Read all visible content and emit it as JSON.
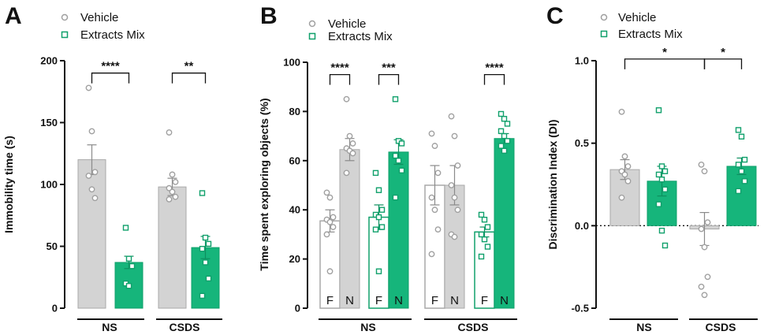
{
  "colors": {
    "vehicle": "#d3d3d3",
    "vehicle_edge": "#a9a9a9",
    "vehicle_point": "#a0a0a0",
    "extracts": "#16b57b",
    "extracts_edge": "#10a06b",
    "axis": "#111111"
  },
  "legend": {
    "vehicle": "Vehicle",
    "extracts": "Extracts Mix"
  },
  "chart_data": [
    {
      "panel": "A",
      "type": "bar",
      "ylabel": "Immobility time (s)",
      "ylim": [
        0,
        200
      ],
      "yticks": [
        0,
        50,
        100,
        150,
        200
      ],
      "yticklabels": [
        "0",
        "50",
        "100",
        "150",
        "200"
      ],
      "groups": [
        "NS",
        "CSDS"
      ],
      "bars": [
        {
          "group": "NS",
          "series": "Vehicle",
          "style": "vehicle",
          "mean": 120,
          "sem": 12,
          "points": [
            178,
            143,
            110,
            107,
            96,
            89
          ]
        },
        {
          "group": "NS",
          "series": "Extracts Mix",
          "style": "extracts",
          "mean": 37,
          "sem": 5,
          "points": [
            65,
            40,
            34,
            20,
            18
          ]
        },
        {
          "group": "CSDS",
          "series": "Vehicle",
          "style": "vehicle",
          "mean": 98,
          "sem": 7,
          "points": [
            142,
            108,
            102,
            97,
            94,
            90,
            88
          ]
        },
        {
          "group": "CSDS",
          "series": "Extracts Mix",
          "style": "extracts",
          "mean": 49,
          "sem": 9,
          "points": [
            93,
            57,
            52,
            48,
            37,
            24,
            10
          ]
        }
      ],
      "significance": [
        {
          "pair": [
            0,
            1
          ],
          "y": 190,
          "label": "****"
        },
        {
          "pair": [
            2,
            3
          ],
          "y": 190,
          "label": "**"
        }
      ]
    },
    {
      "panel": "B",
      "type": "bar",
      "ylabel": "Time spent exploring objects (%)",
      "ylim": [
        0,
        100
      ],
      "yticks": [
        0,
        20,
        40,
        60,
        80,
        100
      ],
      "yticklabels": [
        "0",
        "20",
        "40",
        "60",
        "80",
        "100"
      ],
      "groups": [
        "NS",
        "CSDS"
      ],
      "bars": [
        {
          "group": "NS",
          "series": "Vehicle",
          "object": "F",
          "style": "vehicle-open",
          "mean": 35.5,
          "sem": 4.5,
          "points": [
            47,
            45,
            37,
            36,
            35,
            33,
            30,
            15
          ]
        },
        {
          "group": "NS",
          "series": "Vehicle",
          "object": "N",
          "style": "vehicle",
          "mean": 64.5,
          "sem": 4.5,
          "points": [
            85,
            70,
            67,
            65,
            64,
            63,
            55
          ]
        },
        {
          "group": "NS",
          "series": "Extracts Mix",
          "object": "F",
          "style": "extracts-open",
          "mean": 37,
          "sem": 5,
          "points": [
            55,
            48,
            40,
            38,
            37,
            33,
            32,
            15
          ]
        },
        {
          "group": "NS",
          "series": "Extracts Mix",
          "object": "N",
          "style": "extracts",
          "mean": 63.5,
          "sem": 5,
          "points": [
            85,
            68,
            67,
            62,
            60,
            56,
            45
          ]
        },
        {
          "group": "CSDS",
          "series": "Vehicle",
          "object": "F",
          "style": "vehicle-open",
          "mean": 50,
          "sem": 8,
          "points": [
            71,
            66,
            55,
            45,
            40,
            32,
            22
          ]
        },
        {
          "group": "CSDS",
          "series": "Vehicle",
          "object": "N",
          "style": "vehicle",
          "mean": 50,
          "sem": 8,
          "points": [
            78,
            70,
            58,
            50,
            45,
            40,
            30,
            29
          ]
        },
        {
          "group": "CSDS",
          "series": "Extracts Mix",
          "object": "F",
          "style": "extracts-open",
          "mean": 31,
          "sem": 2,
          "points": [
            38,
            36,
            33,
            30,
            28,
            25,
            21
          ]
        },
        {
          "group": "CSDS",
          "series": "Extracts Mix",
          "object": "N",
          "style": "extracts",
          "mean": 69,
          "sem": 2,
          "points": [
            79,
            77,
            75,
            72,
            70,
            68,
            66,
            64
          ]
        }
      ],
      "significance": [
        {
          "pair": [
            0,
            1
          ],
          "y": 95,
          "label": "****"
        },
        {
          "pair": [
            2,
            3
          ],
          "y": 95,
          "label": "***"
        },
        {
          "pair": [
            6,
            7
          ],
          "y": 95,
          "label": "****"
        }
      ]
    },
    {
      "panel": "C",
      "type": "bar",
      "ylabel": "Discrimination Index (DI)",
      "ylim": [
        -0.5,
        1.0
      ],
      "yticks": [
        -0.5,
        0.0,
        0.5,
        1.0
      ],
      "yticklabels": [
        "-0.5",
        "0.0",
        "0.5",
        "1.0"
      ],
      "reference_line": 0,
      "groups": [
        "NS",
        "CSDS"
      ],
      "bars": [
        {
          "group": "NS",
          "series": "Vehicle",
          "style": "vehicle",
          "mean": 0.34,
          "sem": 0.06,
          "points": [
            0.69,
            0.42,
            0.36,
            0.33,
            0.31,
            0.27,
            0.17
          ]
        },
        {
          "group": "NS",
          "series": "Extracts Mix",
          "style": "extracts",
          "mean": 0.27,
          "sem": 0.09,
          "points": [
            0.7,
            0.36,
            0.33,
            0.31,
            0.28,
            0.22,
            0.13,
            -0.03,
            -0.12
          ]
        },
        {
          "group": "CSDS",
          "series": "Vehicle",
          "style": "vehicle",
          "mean": -0.02,
          "sem": 0.1,
          "points": [
            0.37,
            0.33,
            0.02,
            -0.02,
            -0.13,
            -0.31,
            -0.37,
            -0.42
          ]
        },
        {
          "group": "CSDS",
          "series": "Extracts Mix",
          "style": "extracts",
          "mean": 0.36,
          "sem": 0.05,
          "points": [
            0.58,
            0.54,
            0.4,
            0.37,
            0.33,
            0.27,
            0.21
          ]
        }
      ],
      "significance": [
        {
          "pair": [
            0,
            2
          ],
          "y": 1.01,
          "label": "*"
        },
        {
          "pair": [
            2,
            3
          ],
          "y": 1.01,
          "label": "*"
        }
      ]
    }
  ]
}
